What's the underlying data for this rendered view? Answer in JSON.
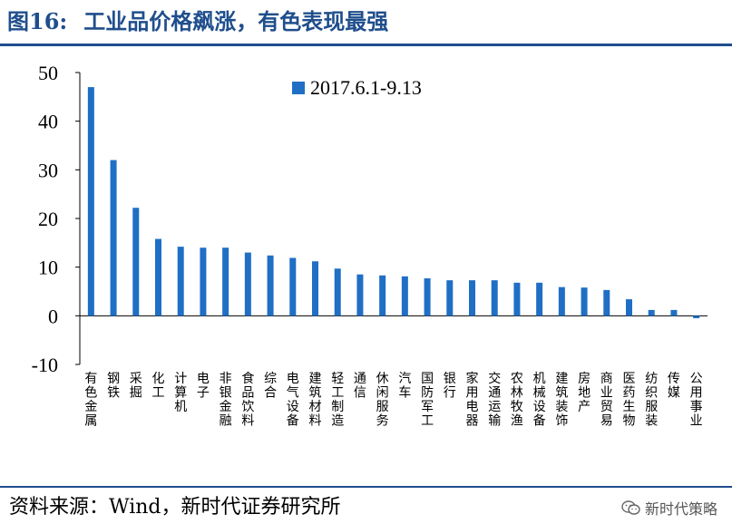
{
  "header": {
    "figure_label": "图16:",
    "title": "工业品价格飙涨，有色表现最强"
  },
  "footer": {
    "source": "资料来源：Wind，新时代证券研究所",
    "watermark": "新时代策略",
    "watermark_icon": "wechat-icon"
  },
  "colors": {
    "bar": "#1f6fc5",
    "title": "#1f4e8c"
  },
  "chart_data": {
    "type": "bar",
    "title": "",
    "xlabel": "",
    "ylabel": "",
    "ylim": [
      -10,
      50
    ],
    "yticks": [
      -10,
      0,
      10,
      20,
      30,
      40,
      50
    ],
    "grid": false,
    "legend_position": "top-center",
    "categories": [
      "有色金属",
      "钢铁",
      "采掘",
      "化工",
      "计算机",
      "电子",
      "非银金融",
      "食品饮料",
      "综合",
      "电气设备",
      "建筑材料",
      "轻工制造",
      "通信",
      "休闲服务",
      "汽车",
      "国防军工",
      "银行",
      "家用电器",
      "交通运输",
      "农林牧渔",
      "机械设备",
      "建筑装饰",
      "房地产",
      "商业贸易",
      "医药生物",
      "纺织服装",
      "传媒",
      "公用事业"
    ],
    "series": [
      {
        "name": "2017.6.1-9.13",
        "values": [
          47,
          32,
          22.2,
          15.8,
          14.2,
          14,
          14,
          13,
          12.4,
          11.9,
          11.2,
          9.7,
          8.5,
          8.3,
          8.1,
          7.7,
          7.3,
          7.3,
          7.3,
          6.8,
          6.8,
          5.9,
          5.8,
          5.3,
          3.4,
          1.2,
          1.2,
          -0.5
        ]
      }
    ]
  }
}
